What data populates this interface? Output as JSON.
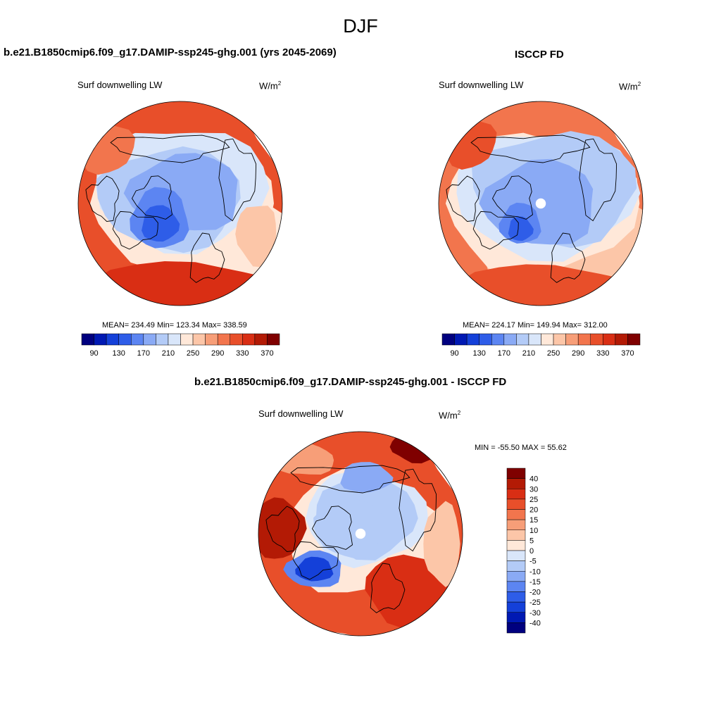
{
  "page": {
    "title": "DJF"
  },
  "colors": {
    "abs_scale": [
      "#00007f",
      "#0019b3",
      "#1440d9",
      "#2e5de8",
      "#5c85f2",
      "#8aaaf5",
      "#b3cbf7",
      "#d9e6fa",
      "#ffe8d9",
      "#fcc6a8",
      "#f79e78",
      "#f2754d",
      "#e84f2a",
      "#d92e14",
      "#b31a05",
      "#7f0000"
    ],
    "diff_scale": [
      "#00007f",
      "#0019b3",
      "#1440d9",
      "#2e5de8",
      "#5c85f2",
      "#8aaaf5",
      "#b3cbf7",
      "#d9e6fa",
      "#ffe8d9",
      "#fcc6a8",
      "#f79e78",
      "#f2754d",
      "#e84f2a",
      "#d92e14",
      "#b31a05",
      "#7f0000"
    ],
    "land_outline": "#000000"
  },
  "panels": {
    "model": {
      "title": "b.e21.B1850cmip6.f09_g17.DAMIP-ssp245-ghg.001 (yrs 2045-2069)",
      "subtitle": "Surf downwelling LW",
      "units_base": "W/m",
      "units_exp": "2",
      "stats": "MEAN= 234.49  Min= 123.34  Max= 338.59"
    },
    "obs": {
      "title": "ISCCP FD",
      "subtitle": "Surf downwelling LW",
      "units_base": "W/m",
      "units_exp": "2",
      "stats": "MEAN= 224.17  Min= 149.94  Max= 312.00"
    },
    "diff": {
      "title": "b.e21.B1850cmip6.f09_g17.DAMIP-ssp245-ghg.001 - ISCCP FD",
      "subtitle": "Surf downwelling LW",
      "units_base": "W/m",
      "units_exp": "2",
      "stats": "MIN = -55.50 MAX =  55.62"
    }
  },
  "chart_data": [
    {
      "type": "heatmap",
      "projection": "north-polar-stereographic",
      "title": "b.e21.B1850cmip6.f09_g17.DAMIP-ssp245-ghg.001 (yrs 2045-2069)",
      "variable": "Surf downwelling LW",
      "units": "W/m2",
      "mean": 234.49,
      "min": 123.34,
      "max": 338.59,
      "colorbar_ticks": [
        "90",
        "130",
        "170",
        "210",
        "250",
        "290",
        "330",
        "370"
      ],
      "colorbar_orientation": "horizontal"
    },
    {
      "type": "heatmap",
      "projection": "north-polar-stereographic",
      "title": "ISCCP FD",
      "variable": "Surf downwelling LW",
      "units": "W/m2",
      "mean": 224.17,
      "min": 149.94,
      "max": 312.0,
      "colorbar_ticks": [
        "90",
        "130",
        "170",
        "210",
        "250",
        "290",
        "330",
        "370"
      ],
      "colorbar_orientation": "horizontal"
    },
    {
      "type": "heatmap",
      "projection": "north-polar-stereographic",
      "title": "b.e21.B1850cmip6.f09_g17.DAMIP-ssp245-ghg.001 - ISCCP FD",
      "variable": "Surf downwelling LW",
      "units": "W/m2",
      "min": -55.5,
      "max": 55.62,
      "colorbar_ticks": [
        "40",
        "30",
        "25",
        "20",
        "15",
        "10",
        "5",
        "0",
        "-5",
        "-10",
        "-15",
        "-20",
        "-25",
        "-30",
        "-40"
      ],
      "colorbar_orientation": "vertical"
    }
  ]
}
